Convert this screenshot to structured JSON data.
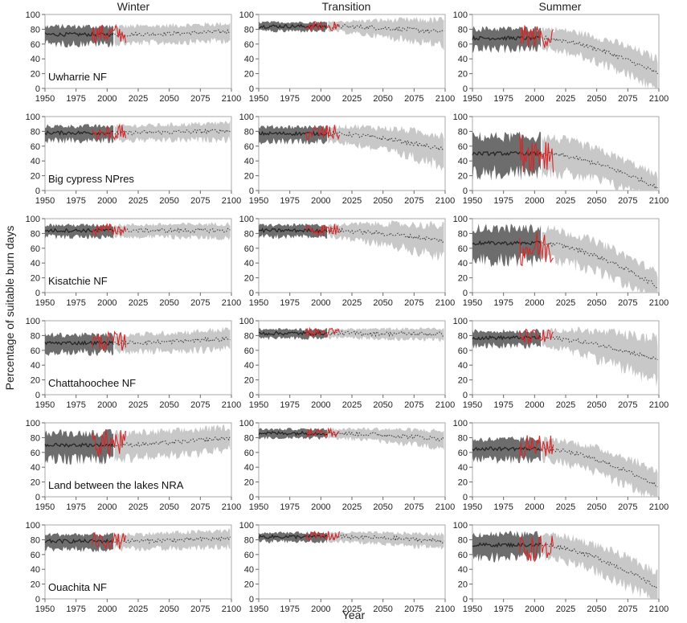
{
  "figure": {
    "ylabel": "Percentage of suitable burn days",
    "xlabel": "Year",
    "column_titles": [
      "Winter",
      "Transition",
      "Summer"
    ]
  },
  "colors": {
    "observed_line": "#d62728",
    "historical_band": "#6d6d6d",
    "projected_band": "#c8c8c8",
    "historical_line": "#222222",
    "projected_line": "#333333",
    "frame": "#aaaaaa"
  },
  "chart_data": {
    "type": "area",
    "grid": false,
    "legend": "none",
    "x_ticks": [
      1950,
      1975,
      2000,
      2025,
      2050,
      2075,
      2100
    ],
    "y_ticks": [
      0,
      20,
      40,
      60,
      80,
      100
    ],
    "xlim": [
      1950,
      2100
    ],
    "ylim": [
      0,
      100
    ],
    "historical_period": [
      1950,
      2005
    ],
    "projected_period": [
      2006,
      2099
    ],
    "observed_period": [
      1988,
      2015
    ],
    "sites": [
      "Uwharrie NF",
      "Big cypress NPres",
      "Kisatchie NF",
      "Chattahoochee NF",
      "Land between the lakes NRA",
      "Ouachita NF"
    ],
    "panels": [
      [
        {
          "site": "Uwharrie NF",
          "season": "Winter",
          "hist_mean": 73,
          "hist_spread": 12,
          "end_mean": 77,
          "end_spread": 12,
          "obs_mean": 74
        },
        {
          "site": "Uwharrie NF",
          "season": "Transition",
          "hist_mean": 84,
          "hist_spread": 6,
          "end_mean": 76,
          "end_spread": 18,
          "obs_mean": 84
        },
        {
          "site": "Uwharrie NF",
          "season": "Summer",
          "hist_mean": 68,
          "hist_spread": 14,
          "end_mean": 20,
          "end_spread": 22,
          "obs_mean": 70
        }
      ],
      [
        {
          "site": "Big cypress NPres",
          "season": "Winter",
          "hist_mean": 78,
          "hist_spread": 10,
          "end_mean": 81,
          "end_spread": 12,
          "obs_mean": 78
        },
        {
          "site": "Big cypress NPres",
          "season": "Transition",
          "hist_mean": 77,
          "hist_spread": 10,
          "end_mean": 55,
          "end_spread": 22,
          "obs_mean": 78
        },
        {
          "site": "Big cypress NPres",
          "season": "Summer",
          "hist_mean": 50,
          "hist_spread": 25,
          "end_mean": 4,
          "end_spread": 18,
          "obs_mean": 52
        }
      ],
      [
        {
          "site": "Kisatchie NF",
          "season": "Winter",
          "hist_mean": 84,
          "hist_spread": 8,
          "end_mean": 84,
          "end_spread": 10,
          "obs_mean": 85
        },
        {
          "site": "Kisatchie NF",
          "season": "Transition",
          "hist_mean": 84,
          "hist_spread": 8,
          "end_mean": 70,
          "end_spread": 22,
          "obs_mean": 85
        },
        {
          "site": "Kisatchie NF",
          "season": "Summer",
          "hist_mean": 67,
          "hist_spread": 22,
          "end_mean": 8,
          "end_spread": 20,
          "obs_mean": 60
        }
      ],
      [
        {
          "site": "Chattahoochee NF",
          "season": "Winter",
          "hist_mean": 70,
          "hist_spread": 12,
          "end_mean": 76,
          "end_spread": 14,
          "obs_mean": 72
        },
        {
          "site": "Chattahoochee NF",
          "season": "Transition",
          "hist_mean": 83,
          "hist_spread": 6,
          "end_mean": 82,
          "end_spread": 8,
          "obs_mean": 84
        },
        {
          "site": "Chattahoochee NF",
          "season": "Summer",
          "hist_mean": 77,
          "hist_spread": 10,
          "end_mean": 47,
          "end_spread": 30,
          "obs_mean": 78
        }
      ],
      [
        {
          "site": "Land between the lakes NRA",
          "season": "Winter",
          "hist_mean": 70,
          "hist_spread": 18,
          "end_mean": 80,
          "end_spread": 16,
          "obs_mean": 72
        },
        {
          "site": "Land between the lakes NRA",
          "season": "Transition",
          "hist_mean": 86,
          "hist_spread": 6,
          "end_mean": 78,
          "end_spread": 12,
          "obs_mean": 86
        },
        {
          "site": "Land between the lakes NRA",
          "season": "Summer",
          "hist_mean": 65,
          "hist_spread": 14,
          "end_mean": 15,
          "end_spread": 22,
          "obs_mean": 68
        }
      ],
      [
        {
          "site": "Ouachita NF",
          "season": "Winter",
          "hist_mean": 78,
          "hist_spread": 10,
          "end_mean": 82,
          "end_spread": 12,
          "obs_mean": 78
        },
        {
          "site": "Ouachita NF",
          "season": "Transition",
          "hist_mean": 84,
          "hist_spread": 6,
          "end_mean": 78,
          "end_spread": 10,
          "obs_mean": 85
        },
        {
          "site": "Ouachita NF",
          "season": "Summer",
          "hist_mean": 73,
          "hist_spread": 16,
          "end_mean": 15,
          "end_spread": 22,
          "obs_mean": 68
        }
      ]
    ]
  }
}
